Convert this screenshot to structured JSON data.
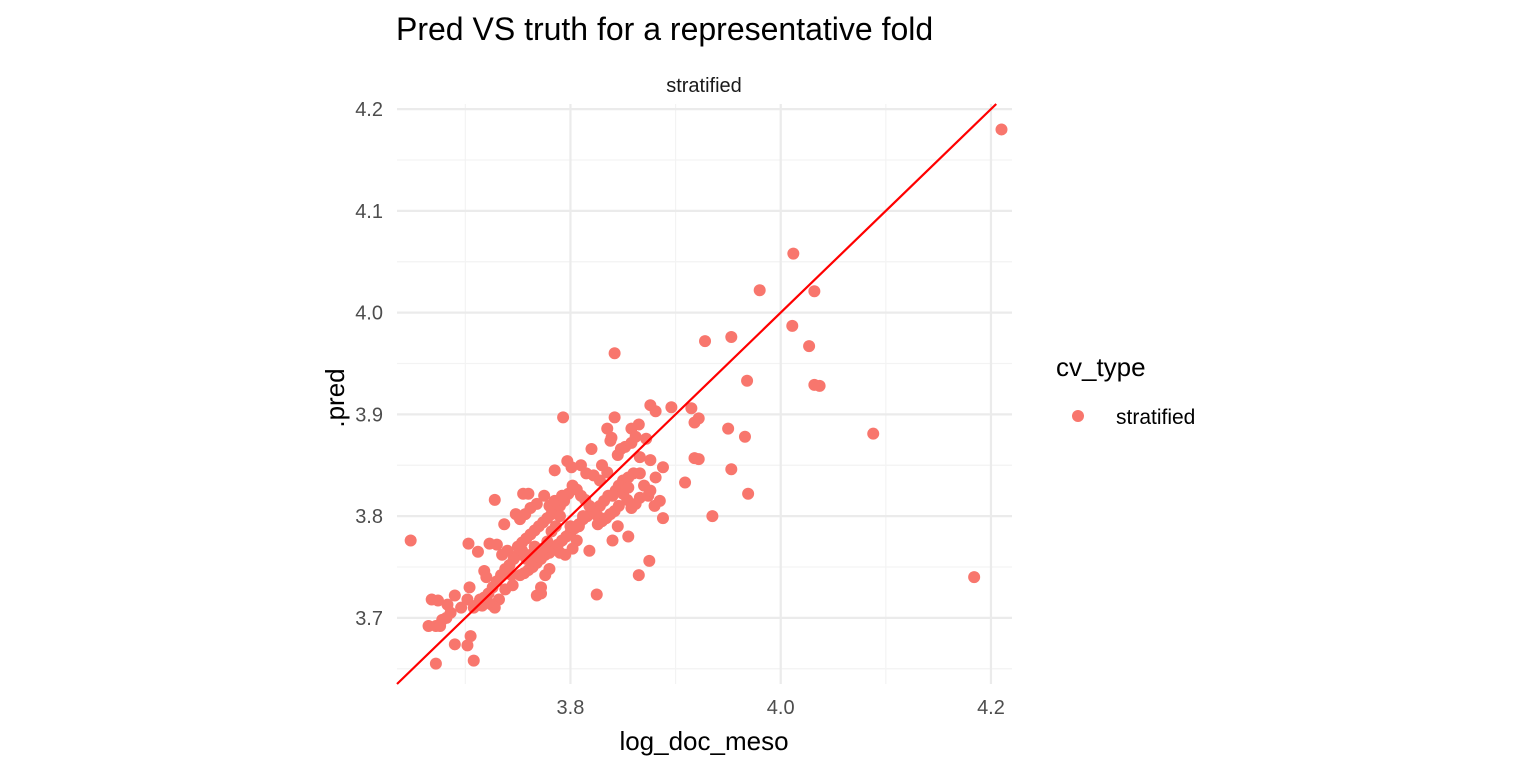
{
  "chart_data": {
    "type": "scatter",
    "title": "Pred VS truth for a representative fold",
    "facet_label": "stratified",
    "xlabel": "log_doc_meso",
    "ylabel": ".pred",
    "xlim": [
      3.635,
      4.22
    ],
    "ylim": [
      3.635,
      4.205
    ],
    "x_ticks": [
      3.8,
      4.0,
      4.2
    ],
    "y_ticks": [
      3.7,
      3.8,
      3.9,
      4.0,
      4.1,
      4.2
    ],
    "x_tick_labels": [
      "3.8",
      "4.0",
      "4.2"
    ],
    "y_tick_labels": [
      "3.7",
      "3.8",
      "3.9",
      "4.0",
      "4.1",
      "4.2"
    ],
    "grid": true,
    "legend": {
      "title": "cv_type",
      "position": "right",
      "entries": [
        "stratified"
      ]
    },
    "reference_line": {
      "slope": 1,
      "intercept": 0,
      "color": "#ff0000"
    },
    "series": [
      {
        "name": "stratified",
        "color": "#f8766d",
        "points": [
          [
            4.21,
            4.18
          ],
          [
            4.012,
            4.058
          ],
          [
            3.98,
            4.022
          ],
          [
            4.032,
            4.021
          ],
          [
            4.011,
            3.987
          ],
          [
            3.953,
            3.976
          ],
          [
            4.027,
            3.967
          ],
          [
            4.032,
            3.929
          ],
          [
            4.037,
            3.928
          ],
          [
            3.968,
            3.933
          ],
          [
            3.928,
            3.972
          ],
          [
            3.842,
            3.96
          ],
          [
            4.088,
            3.881
          ],
          [
            4.184,
            3.74
          ],
          [
            3.966,
            3.878
          ],
          [
            3.95,
            3.886
          ],
          [
            3.953,
            3.846
          ],
          [
            3.969,
            3.822
          ],
          [
            3.935,
            3.8
          ],
          [
            3.896,
            3.907
          ],
          [
            3.915,
            3.906
          ],
          [
            3.922,
            3.896
          ],
          [
            3.918,
            3.892
          ],
          [
            3.918,
            3.857
          ],
          [
            3.922,
            3.856
          ],
          [
            3.909,
            3.833
          ],
          [
            3.876,
            3.909
          ],
          [
            3.881,
            3.903
          ],
          [
            3.842,
            3.897
          ],
          [
            3.793,
            3.897
          ],
          [
            3.865,
            3.89
          ],
          [
            3.858,
            3.886
          ],
          [
            3.835,
            3.886
          ],
          [
            3.862,
            3.878
          ],
          [
            3.872,
            3.876
          ],
          [
            3.858,
            3.872
          ],
          [
            3.838,
            3.874
          ],
          [
            3.839,
            3.877
          ],
          [
            3.852,
            3.868
          ],
          [
            3.848,
            3.866
          ],
          [
            3.82,
            3.866
          ],
          [
            3.845,
            3.86
          ],
          [
            3.866,
            3.858
          ],
          [
            3.876,
            3.855
          ],
          [
            3.888,
            3.848
          ],
          [
            3.797,
            3.854
          ],
          [
            3.881,
            3.838
          ],
          [
            3.866,
            3.842
          ],
          [
            3.835,
            3.843
          ],
          [
            3.815,
            3.842
          ],
          [
            3.822,
            3.84
          ],
          [
            3.81,
            3.85
          ],
          [
            3.801,
            3.848
          ],
          [
            3.785,
            3.845
          ],
          [
            3.86,
            3.842
          ],
          [
            3.855,
            3.838
          ],
          [
            3.85,
            3.835
          ],
          [
            3.846,
            3.83
          ],
          [
            3.843,
            3.825
          ],
          [
            3.84,
            3.82
          ],
          [
            3.836,
            3.82
          ],
          [
            3.832,
            3.815
          ],
          [
            3.828,
            3.81
          ],
          [
            3.825,
            3.808
          ],
          [
            3.82,
            3.805
          ],
          [
            3.816,
            3.8
          ],
          [
            3.812,
            3.797
          ],
          [
            3.808,
            3.792
          ],
          [
            3.804,
            3.788
          ],
          [
            3.8,
            3.784
          ],
          [
            3.796,
            3.78
          ],
          [
            3.792,
            3.776
          ],
          [
            3.788,
            3.772
          ],
          [
            3.785,
            3.768
          ],
          [
            3.78,
            3.764
          ],
          [
            3.776,
            3.762
          ],
          [
            3.772,
            3.758
          ],
          [
            3.768,
            3.754
          ],
          [
            3.764,
            3.75
          ],
          [
            3.76,
            3.747
          ],
          [
            3.756,
            3.744
          ],
          [
            3.752,
            3.742
          ],
          [
            3.87,
            3.83
          ],
          [
            3.874,
            3.82
          ],
          [
            3.866,
            3.818
          ],
          [
            3.862,
            3.812
          ],
          [
            3.858,
            3.808
          ],
          [
            3.854,
            3.816
          ],
          [
            3.85,
            3.822
          ],
          [
            3.846,
            3.81
          ],
          [
            3.842,
            3.805
          ],
          [
            3.838,
            3.802
          ],
          [
            3.834,
            3.798
          ],
          [
            3.83,
            3.795
          ],
          [
            3.826,
            3.8
          ],
          [
            3.822,
            3.804
          ],
          [
            3.818,
            3.81
          ],
          [
            3.814,
            3.816
          ],
          [
            3.81,
            3.82
          ],
          [
            3.806,
            3.826
          ],
          [
            3.802,
            3.83
          ],
          [
            3.798,
            3.822
          ],
          [
            3.794,
            3.815
          ],
          [
            3.79,
            3.81
          ],
          [
            3.786,
            3.806
          ],
          [
            3.782,
            3.802
          ],
          [
            3.778,
            3.798
          ],
          [
            3.774,
            3.794
          ],
          [
            3.77,
            3.79
          ],
          [
            3.766,
            3.786
          ],
          [
            3.762,
            3.782
          ],
          [
            3.758,
            3.778
          ],
          [
            3.754,
            3.774
          ],
          [
            3.75,
            3.77
          ],
          [
            3.885,
            3.815
          ],
          [
            3.88,
            3.81
          ],
          [
            3.888,
            3.798
          ],
          [
            3.876,
            3.825
          ],
          [
            3.855,
            3.828
          ],
          [
            3.845,
            3.79
          ],
          [
            3.84,
            3.776
          ],
          [
            3.826,
            3.792
          ],
          [
            3.818,
            3.766
          ],
          [
            3.806,
            3.776
          ],
          [
            3.802,
            3.768
          ],
          [
            3.795,
            3.762
          ],
          [
            3.79,
            3.764
          ],
          [
            3.78,
            3.748
          ],
          [
            3.776,
            3.742
          ],
          [
            3.772,
            3.73
          ],
          [
            3.768,
            3.722
          ],
          [
            3.772,
            3.724
          ],
          [
            3.825,
            3.723
          ],
          [
            3.865,
            3.742
          ],
          [
            3.875,
            3.756
          ],
          [
            3.855,
            3.78
          ],
          [
            3.83,
            3.85
          ],
          [
            3.828,
            3.835
          ],
          [
            3.808,
            3.79
          ],
          [
            3.812,
            3.8
          ],
          [
            3.8,
            3.79
          ],
          [
            3.79,
            3.8
          ],
          [
            3.786,
            3.79
          ],
          [
            3.782,
            3.785
          ],
          [
            3.778,
            3.775
          ],
          [
            3.774,
            3.768
          ],
          [
            3.77,
            3.76
          ],
          [
            3.766,
            3.77
          ],
          [
            3.762,
            3.762
          ],
          [
            3.758,
            3.758
          ],
          [
            3.754,
            3.766
          ],
          [
            3.75,
            3.762
          ],
          [
            3.746,
            3.758
          ],
          [
            3.742,
            3.752
          ],
          [
            3.738,
            3.748
          ],
          [
            3.734,
            3.742
          ],
          [
            3.73,
            3.736
          ],
          [
            3.726,
            3.73
          ],
          [
            3.722,
            3.724
          ],
          [
            3.718,
            3.72
          ],
          [
            3.714,
            3.716
          ],
          [
            3.71,
            3.712
          ],
          [
            3.762,
            3.808
          ],
          [
            3.768,
            3.812
          ],
          [
            3.775,
            3.82
          ],
          [
            3.78,
            3.81
          ],
          [
            3.785,
            3.815
          ],
          [
            3.792,
            3.82
          ],
          [
            3.755,
            3.822
          ],
          [
            3.76,
            3.822
          ],
          [
            3.748,
            3.802
          ],
          [
            3.752,
            3.797
          ],
          [
            3.757,
            3.802
          ],
          [
            3.737,
            3.792
          ],
          [
            3.728,
            3.816
          ],
          [
            3.73,
            3.772
          ],
          [
            3.723,
            3.773
          ],
          [
            3.718,
            3.746
          ],
          [
            3.72,
            3.74
          ],
          [
            3.712,
            3.765
          ],
          [
            3.703,
            3.773
          ],
          [
            3.735,
            3.762
          ],
          [
            3.74,
            3.766
          ],
          [
            3.744,
            3.742
          ],
          [
            3.745,
            3.732
          ],
          [
            3.738,
            3.728
          ],
          [
            3.732,
            3.718
          ],
          [
            3.725,
            3.713
          ],
          [
            3.728,
            3.71
          ],
          [
            3.722,
            3.715
          ],
          [
            3.716,
            3.712
          ],
          [
            3.714,
            3.718
          ],
          [
            3.708,
            3.71
          ],
          [
            3.702,
            3.718
          ],
          [
            3.704,
            3.73
          ],
          [
            3.696,
            3.71
          ],
          [
            3.69,
            3.722
          ],
          [
            3.686,
            3.705
          ],
          [
            3.683,
            3.713
          ],
          [
            3.678,
            3.698
          ],
          [
            3.674,
            3.717
          ],
          [
            3.672,
            3.692
          ],
          [
            3.676,
            3.692
          ],
          [
            3.665,
            3.692
          ],
          [
            3.668,
            3.718
          ],
          [
            3.648,
            3.776
          ],
          [
            3.69,
            3.674
          ],
          [
            3.705,
            3.682
          ],
          [
            3.702,
            3.673
          ],
          [
            3.708,
            3.658
          ],
          [
            3.672,
            3.655
          ],
          [
            3.682,
            3.7
          ]
        ]
      }
    ]
  }
}
